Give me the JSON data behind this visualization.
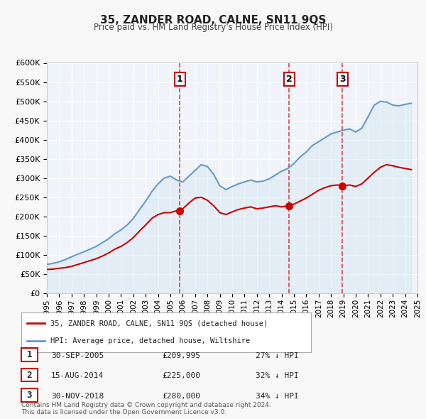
{
  "title": "35, ZANDER ROAD, CALNE, SN11 9QS",
  "subtitle": "Price paid vs. HM Land Registry's House Price Index (HPI)",
  "legend_house": "35, ZANDER ROAD, CALNE, SN11 9QS (detached house)",
  "legend_hpi": "HPI: Average price, detached house, Wiltshire",
  "house_color": "#cc0000",
  "hpi_color": "#6699cc",
  "hpi_fill_color": "#cce0f0",
  "transactions": [
    {
      "num": 1,
      "date": "30-SEP-2005",
      "price": 209995,
      "pct": "27% ↓ HPI",
      "year": 2005.75
    },
    {
      "num": 2,
      "date": "15-AUG-2014",
      "price": 225000,
      "pct": "32% ↓ HPI",
      "year": 2014.62
    },
    {
      "num": 3,
      "date": "30-NOV-2018",
      "price": 280000,
      "pct": "34% ↓ HPI",
      "year": 2018.92
    }
  ],
  "footnote": "Contains HM Land Registry data © Crown copyright and database right 2024.\nThis data is licensed under the Open Government Licence v3.0.",
  "ylim": [
    0,
    600000
  ],
  "yticks": [
    0,
    50000,
    100000,
    150000,
    200000,
    250000,
    300000,
    350000,
    400000,
    450000,
    500000,
    550000,
    600000
  ],
  "xlim_start": 1995,
  "xlim_end": 2025,
  "background_color": "#f0f4fa",
  "plot_bg_color": "#f0f4fa",
  "grid_color": "#ffffff",
  "hpi_data_x": [
    1995,
    1995.5,
    1996,
    1996.5,
    1997,
    1997.5,
    1998,
    1998.5,
    1999,
    1999.5,
    2000,
    2000.5,
    2001,
    2001.5,
    2002,
    2002.5,
    2003,
    2003.5,
    2004,
    2004.5,
    2005,
    2005.5,
    2006,
    2006.5,
    2007,
    2007.5,
    2008,
    2008.5,
    2009,
    2009.5,
    2010,
    2010.5,
    2011,
    2011.5,
    2012,
    2012.5,
    2013,
    2013.5,
    2014,
    2014.5,
    2015,
    2015.5,
    2016,
    2016.5,
    2017,
    2017.5,
    2018,
    2018.5,
    2019,
    2019.5,
    2020,
    2020.5,
    2021,
    2021.5,
    2022,
    2022.5,
    2023,
    2023.5,
    2024,
    2024.5
  ],
  "hpi_data_y": [
    75000,
    78000,
    82000,
    88000,
    95000,
    102000,
    108000,
    115000,
    122000,
    132000,
    142000,
    155000,
    165000,
    178000,
    195000,
    218000,
    240000,
    265000,
    285000,
    300000,
    305000,
    295000,
    290000,
    305000,
    320000,
    335000,
    330000,
    310000,
    280000,
    270000,
    278000,
    285000,
    290000,
    295000,
    290000,
    292000,
    298000,
    308000,
    318000,
    325000,
    338000,
    355000,
    368000,
    385000,
    395000,
    405000,
    415000,
    420000,
    425000,
    428000,
    420000,
    430000,
    460000,
    490000,
    500000,
    498000,
    490000,
    488000,
    492000,
    495000
  ],
  "house_data_x": [
    1995,
    1995.5,
    1996,
    1996.5,
    1997,
    1997.5,
    1998,
    1998.5,
    1999,
    1999.5,
    2000,
    2000.5,
    2001,
    2001.5,
    2002,
    2002.5,
    2003,
    2003.5,
    2004,
    2004.5,
    2005,
    2005.5,
    2006,
    2006.5,
    2007,
    2007.5,
    2008,
    2008.5,
    2009,
    2009.5,
    2010,
    2010.5,
    2011,
    2011.5,
    2012,
    2012.5,
    2013,
    2013.5,
    2014,
    2014.5,
    2015,
    2015.5,
    2016,
    2016.5,
    2017,
    2017.5,
    2018,
    2018.5,
    2019,
    2019.5,
    2020,
    2020.5,
    2021,
    2021.5,
    2022,
    2022.5,
    2023,
    2023.5,
    2024,
    2024.5
  ],
  "house_data_y": [
    62000,
    63000,
    65000,
    67000,
    70000,
    75000,
    80000,
    85000,
    90000,
    97000,
    105000,
    115000,
    122000,
    132000,
    145000,
    162000,
    178000,
    195000,
    205000,
    210000,
    209995,
    215000,
    220000,
    235000,
    248000,
    250000,
    242000,
    228000,
    210000,
    205000,
    212000,
    218000,
    222000,
    225000,
    220000,
    222000,
    225000,
    228000,
    225000,
    228000,
    232000,
    240000,
    248000,
    258000,
    268000,
    275000,
    280000,
    282000,
    280000,
    282000,
    278000,
    285000,
    300000,
    315000,
    328000,
    335000,
    332000,
    328000,
    325000,
    322000
  ]
}
